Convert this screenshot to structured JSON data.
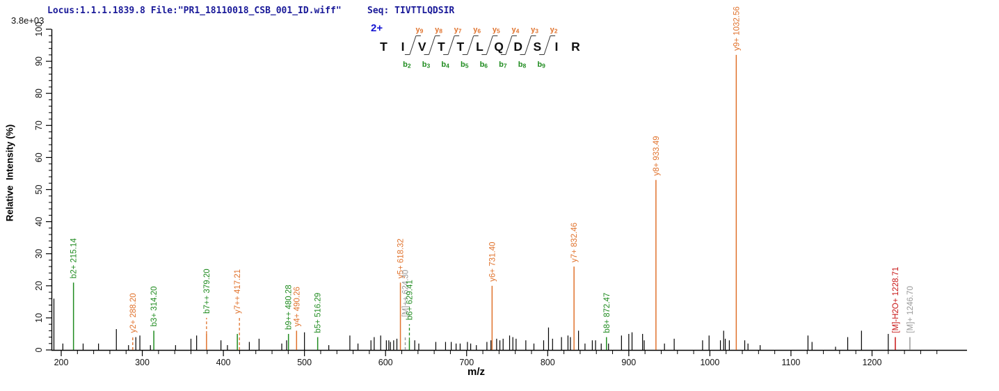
{
  "header": {
    "locus_text": "Locus:1.1.1.1839.8 File:\"PR1_18110018_CSB_001_ID.wiff\"",
    "seq_text": "Seq: TIVTTLQDSIR",
    "scale_label": "3.8e+03"
  },
  "axes": {
    "y_title": "Relative  Intensity (%)",
    "x_title": "m/z"
  },
  "colors": {
    "orange": "#e0722c",
    "green": "#1f8b1f",
    "navy": "#1a1a99",
    "blue": "#1414d2",
    "red": "#c81414",
    "gray": "#999999",
    "black": "#000000"
  },
  "chart_data": {
    "type": "bar",
    "subtype": "centroided MS/MS spectrum (stick plot)",
    "title": "",
    "xlabel": "m/z",
    "ylabel": "Relative  Intensity (%)",
    "intensity_scale": "3.8e+03",
    "x_tick_labels": [
      200,
      300,
      400,
      500,
      600,
      700,
      800,
      900,
      1000,
      1100,
      1200
    ],
    "y_tick_labels": [
      0,
      10,
      20,
      30,
      40,
      50,
      60,
      70,
      80,
      90,
      100
    ],
    "x_minor_step": 20,
    "y_minor_step": 2,
    "xlim": [
      188,
      1313
    ],
    "ylim": [
      0,
      100
    ],
    "precursor_charge": "2+",
    "sequence": [
      "T",
      "I",
      "V",
      "T",
      "T",
      "L",
      "Q",
      "D",
      "S",
      "I",
      "R"
    ],
    "y_ion_labels": [
      "y9",
      "y8",
      "y7",
      "y6",
      "y5",
      "y4",
      "y3",
      "y2"
    ],
    "b_ion_labels": [
      "b2",
      "b3",
      "b4",
      "b5",
      "b6",
      "b7",
      "b8",
      "b9"
    ],
    "annotated_peaks": [
      {
        "label": "b2+ 215.14",
        "mz": 215.14,
        "intensity_pct": 21,
        "color": "green"
      },
      {
        "label": "y2+ 288.20",
        "mz": 288.2,
        "intensity_pct": 4,
        "color": "orange",
        "style": "dashed"
      },
      {
        "label": "b3+ 314.20",
        "mz": 314.2,
        "intensity_pct": 6,
        "color": "green"
      },
      {
        "label": "b7++ 379.20",
        "mz": 379.2,
        "intensity_pct": 5,
        "color": "orange",
        "label_color": "green",
        "dash_ext_pct": 10
      },
      {
        "label": "y7++ 417.21",
        "mz": 417.21,
        "intensity_pct": 5,
        "color": "green",
        "label_color": "orange",
        "side_dash_color": "orange",
        "dash_ext_pct": 10
      },
      {
        "label": "b9++ 480.28",
        "mz": 480.28,
        "intensity_pct": 5,
        "color": "green"
      },
      {
        "label": "y4+ 490.26",
        "mz": 490.26,
        "intensity_pct": 6,
        "color": "orange"
      },
      {
        "label": "b5+ 516.29",
        "mz": 516.29,
        "intensity_pct": 4,
        "color": "green"
      },
      {
        "label": "y5+ 618.32",
        "mz": 618.32,
        "intensity_pct": 21,
        "color": "orange"
      },
      {
        "label": "[M]++ 624.30",
        "mz": 624.3,
        "intensity_pct": 4,
        "color": "gray",
        "style": "dashed",
        "dash_ext_pct": 9
      },
      {
        "label": "b6+ 629.41",
        "mz": 629.41,
        "intensity_pct": 3,
        "color": "green",
        "dash_ext_pct": 8
      },
      {
        "label": "y6+ 731.40",
        "mz": 731.4,
        "intensity_pct": 20,
        "color": "orange"
      },
      {
        "label": "y7+ 832.46",
        "mz": 832.46,
        "intensity_pct": 26,
        "color": "orange"
      },
      {
        "label": "b8+ 872.47",
        "mz": 872.47,
        "intensity_pct": 4,
        "color": "green"
      },
      {
        "label": "y8+ 933.49",
        "mz": 933.49,
        "intensity_pct": 53,
        "color": "orange"
      },
      {
        "label": "y9+ 1032.56",
        "mz": 1032.56,
        "intensity_pct": 92,
        "color": "orange"
      },
      {
        "label": "[M]-H2O+ 1228.71",
        "mz": 1228.71,
        "intensity_pct": 4,
        "color": "red"
      },
      {
        "label": "[M]+ 1246.70",
        "mz": 1246.7,
        "intensity_pct": 4,
        "color": "gray"
      }
    ],
    "unlabeled_peaks": [
      [
        191,
        16
      ],
      [
        202,
        2
      ],
      [
        227,
        2
      ],
      [
        246,
        2
      ],
      [
        268,
        6.5
      ],
      [
        283,
        1.5
      ],
      [
        292,
        4
      ],
      [
        297,
        4.5
      ],
      [
        310,
        1.5
      ],
      [
        341,
        1.5
      ],
      [
        360,
        3.5
      ],
      [
        367,
        4.5
      ],
      [
        397,
        3
      ],
      [
        405,
        1.5
      ],
      [
        432,
        2.5
      ],
      [
        444,
        3.5
      ],
      [
        472,
        2
      ],
      [
        478,
        3
      ],
      [
        500,
        5.5
      ],
      [
        530,
        1.5
      ],
      [
        556,
        4.5
      ],
      [
        566,
        2
      ],
      [
        582,
        3
      ],
      [
        586,
        4
      ],
      [
        594,
        4.5
      ],
      [
        601,
        3
      ],
      [
        604,
        3
      ],
      [
        606,
        2.5
      ],
      [
        610,
        3
      ],
      [
        614,
        3.5
      ],
      [
        636,
        3
      ],
      [
        641,
        2
      ],
      [
        662,
        2.5
      ],
      [
        674,
        2.5
      ],
      [
        681,
        2.5
      ],
      [
        687,
        2
      ],
      [
        692,
        2
      ],
      [
        701,
        2.5
      ],
      [
        705,
        2
      ],
      [
        712,
        1.5
      ],
      [
        725,
        2.5
      ],
      [
        730,
        3
      ],
      [
        737,
        3.5
      ],
      [
        741,
        3
      ],
      [
        745,
        3.5
      ],
      [
        753,
        4.5
      ],
      [
        757,
        4
      ],
      [
        761,
        3.5
      ],
      [
        773,
        3
      ],
      [
        783,
        2
      ],
      [
        795,
        3
      ],
      [
        801,
        7
      ],
      [
        806,
        3.5
      ],
      [
        817,
        4
      ],
      [
        825,
        4.5
      ],
      [
        828,
        4
      ],
      [
        838,
        6
      ],
      [
        846,
        2
      ],
      [
        855,
        3
      ],
      [
        859,
        3
      ],
      [
        866,
        2
      ],
      [
        875,
        2
      ],
      [
        891,
        4.5
      ],
      [
        900,
        5
      ],
      [
        904,
        5.5
      ],
      [
        917,
        5
      ],
      [
        919,
        3
      ],
      [
        944,
        2
      ],
      [
        956,
        3.5
      ],
      [
        991,
        3
      ],
      [
        999,
        4.5
      ],
      [
        1013,
        3
      ],
      [
        1017,
        6
      ],
      [
        1019,
        3.5
      ],
      [
        1024,
        3
      ],
      [
        1043,
        3
      ],
      [
        1047,
        2
      ],
      [
        1062,
        1.5
      ],
      [
        1121,
        4.5
      ],
      [
        1126,
        2.5
      ],
      [
        1155,
        1
      ],
      [
        1170,
        4
      ],
      [
        1187,
        6
      ],
      [
        1220,
        5
      ]
    ]
  }
}
